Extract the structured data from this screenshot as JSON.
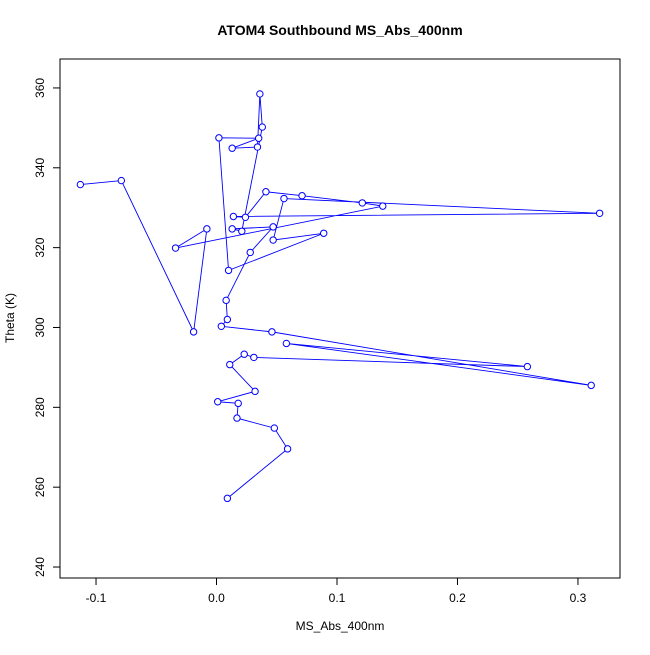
{
  "chart_data": {
    "type": "line",
    "title": "ATOM4 Southbound MS_Abs_400nm",
    "x_label": "MS_Abs_400nm",
    "y_label": "Theta (K)",
    "x": [
      -0.113,
      -0.079,
      -0.019,
      -0.008,
      -0.034,
      0.138,
      0.121,
      0.071,
      0.041,
      0.024,
      0.014,
      0.318,
      0.056,
      0.047,
      0.089,
      0.01,
      0.002,
      0.035,
      0.013,
      0.034,
      0.036,
      0.038,
      0.021,
      0.013,
      0.047,
      0.028,
      0.008,
      0.009,
      0.004,
      0.046,
      0.311,
      0.058,
      0.258,
      0.031,
      0.023,
      0.011,
      0.032,
      0.001,
      0.018,
      0.017,
      0.048,
      0.059,
      0.009
    ],
    "values": [
      335.8,
      336.8,
      298.9,
      324.7,
      319.9,
      330.4,
      331.2,
      333.0,
      334.0,
      327.6,
      327.8,
      328.6,
      332.3,
      321.9,
      323.6,
      314.3,
      347.5,
      347.4,
      344.9,
      345.2,
      358.5,
      350.2,
      324.1,
      324.7,
      325.2,
      318.8,
      306.8,
      302.0,
      300.3,
      298.9,
      285.5,
      296.0,
      290.2,
      292.5,
      293.3,
      290.7,
      284.0,
      281.4,
      281.0,
      277.3,
      274.8,
      269.6,
      257.2
    ],
    "color": "#0000ff",
    "xlim": [
      -0.1299,
      0.3349
    ],
    "ylim": [
      237.25,
      367.25
    ],
    "xticks": [
      {
        "value": -0.1,
        "label": "-0.1"
      },
      {
        "value": 0,
        "label": "0.0"
      },
      {
        "value": 0.1,
        "label": "0.1"
      },
      {
        "value": 0.2,
        "label": "0.2"
      },
      {
        "value": 0.3,
        "label": "0.3"
      }
    ],
    "yticks": [
      240,
      260,
      280,
      300,
      320,
      340,
      360
    ]
  }
}
